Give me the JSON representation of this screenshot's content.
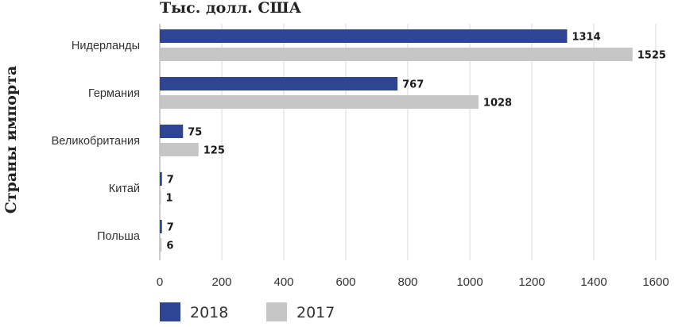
{
  "chart_data": {
    "type": "bar",
    "orientation": "horizontal",
    "title": "Тыс. долл. США",
    "ylabel": "Страны импорта",
    "xlabel": "",
    "categories": [
      "Нидерланды",
      "Германия",
      "Великобритания",
      "Китай",
      "Польша"
    ],
    "series": [
      {
        "name": "2018",
        "color": "#2e4593",
        "values": [
          1314,
          767,
          75,
          7,
          7
        ]
      },
      {
        "name": "2017",
        "color": "#c6c6c6",
        "values": [
          1525,
          1028,
          125,
          1,
          6
        ]
      }
    ],
    "xlim": [
      0,
      1600
    ],
    "xticks": [
      0,
      200,
      400,
      600,
      800,
      1000,
      1200,
      1400,
      1600
    ],
    "grid": "vertical",
    "legend": "bottom-left"
  }
}
